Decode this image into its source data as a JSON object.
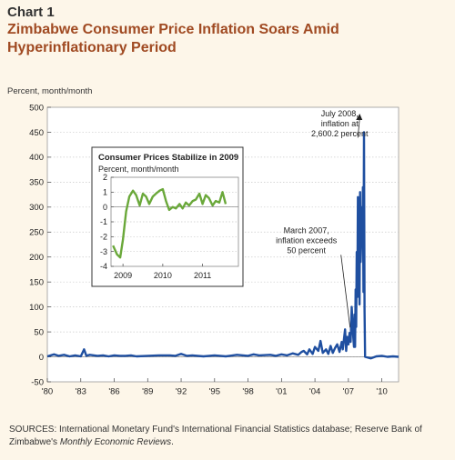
{
  "chart_number": "Chart 1",
  "title": "Zimbabwe Consumer Price Inflation Soars Amid Hyperinflationary Period",
  "units_label": "Percent, month/month",
  "sources": {
    "prefix": "SOURCES: International Monetary Fund's International Financial Statistics database; Reserve Bank of Zimbabwe's ",
    "italic": "Monthly Economic Reviews",
    "suffix": "."
  },
  "colors": {
    "series": "#1f4fa0",
    "inset_series": "#6aa83a",
    "title": "#a04a22",
    "grid": "#c9c9c9"
  },
  "chart_data": [
    {
      "type": "line",
      "title": "",
      "ylabel": "Percent, month/month",
      "ylim": [
        -50,
        500
      ],
      "y_ticks": [
        -50,
        0,
        50,
        100,
        150,
        200,
        250,
        300,
        350,
        400,
        450,
        500
      ],
      "xlim": [
        1980,
        2011.5
      ],
      "x_tick_values": [
        1980,
        1983,
        1986,
        1989,
        1992,
        1995,
        1998,
        2001,
        2004,
        2007,
        2010
      ],
      "x_tick_labels": [
        "'80",
        "'83",
        "'86",
        "'89",
        "'92",
        "'95",
        "'98",
        "'01",
        "'04",
        "'07",
        "'10"
      ],
      "grid": "horizontal dotted",
      "series": [
        {
          "x": [
            1980,
            1980.6,
            1981,
            1981.5,
            1982,
            1982.5,
            1983,
            1983.3,
            1983.5,
            1983.8,
            1984.5,
            1985,
            1985.5,
            1986,
            1986.5,
            1987,
            1987.5,
            1988,
            1989,
            1990,
            1991,
            1991.5,
            1992,
            1992.5,
            1993,
            1994,
            1995,
            1995.5,
            1996,
            1997,
            1998,
            1998.5,
            1999,
            2000,
            2000.5,
            2001,
            2001.5,
            2002,
            2002.5,
            2002.8,
            2003,
            2003.3,
            2003.5,
            2003.8,
            2004,
            2004.3,
            2004.5,
            2004.7,
            2005,
            2005.2,
            2005.4,
            2005.6,
            2005.8,
            2006,
            2006.2,
            2006.4,
            2006.5,
            2006.7,
            2006.8,
            2006.9,
            2007,
            2007.1,
            2007.2,
            2007.3,
            2007.4,
            2007.5,
            2007.55,
            2007.6,
            2007.65,
            2007.7,
            2007.75,
            2007.8,
            2007.85,
            2007.9,
            2007.95,
            2008,
            2008.05,
            2008.1,
            2008.15,
            2008.2,
            2008.25,
            2008.3,
            2008.35,
            2008.4,
            2008.45,
            2008.5,
            2009,
            2009.5,
            2010,
            2010.5,
            2011,
            2011.5
          ],
          "y": [
            1,
            5,
            2,
            4,
            1,
            3,
            1,
            15,
            2,
            4,
            2,
            3,
            1,
            3,
            2,
            2,
            3,
            1,
            2,
            3,
            3,
            2,
            6,
            2,
            3,
            1,
            3,
            2,
            1,
            4,
            2,
            5,
            3,
            4,
            2,
            5,
            3,
            7,
            4,
            10,
            12,
            5,
            15,
            6,
            20,
            12,
            32,
            8,
            15,
            6,
            22,
            8,
            18,
            25,
            10,
            30,
            15,
            55,
            12,
            40,
            25,
            48,
            30,
            100,
            50,
            20,
            85,
            20,
            135,
            60,
            210,
            120,
            320,
            160,
            250,
            105,
            330,
            190,
            230,
            300,
            225,
            340,
            130,
            450,
            95,
            0,
            -3,
            1,
            2,
            0,
            1,
            0
          ]
        }
      ],
      "annotations": [
        {
          "x": 2008.5,
          "y": 450,
          "lines": [
            "July 2008,",
            "inflation at",
            "2,600.2 percent"
          ]
        },
        {
          "x": 2007.15,
          "y": 55,
          "lines": [
            "March 2007,",
            "inflation exceeds",
            "50 percent"
          ]
        }
      ]
    },
    {
      "type": "line",
      "title": "Consumer Prices Stabilize in 2009",
      "ylabel": "Percent, month/month",
      "ylim": [
        -4,
        2
      ],
      "y_ticks": [
        -4,
        -3,
        -2,
        -1,
        0,
        1,
        2
      ],
      "xlim": [
        2008.7,
        2011.9
      ],
      "x_tick_values": [
        2009,
        2010,
        2011
      ],
      "x_tick_labels": [
        "2009",
        "2010",
        "2011"
      ],
      "series": [
        {
          "x": [
            2008.75,
            2008.85,
            2008.93,
            2009.0,
            2009.08,
            2009.16,
            2009.25,
            2009.33,
            2009.42,
            2009.5,
            2009.58,
            2009.66,
            2009.75,
            2009.83,
            2009.92,
            2010.0,
            2010.08,
            2010.16,
            2010.25,
            2010.33,
            2010.42,
            2010.5,
            2010.58,
            2010.66,
            2010.75,
            2010.83,
            2010.92,
            2011.0,
            2011.08,
            2011.16,
            2011.25,
            2011.33,
            2011.42,
            2011.5,
            2011.58
          ],
          "y": [
            -2.6,
            -3.2,
            -3.4,
            -2.2,
            -0.3,
            0.7,
            1.1,
            0.8,
            0.1,
            0.9,
            0.7,
            0.2,
            0.7,
            0.9,
            1.1,
            1.2,
            0.4,
            -0.2,
            0.0,
            -0.1,
            0.2,
            -0.1,
            0.3,
            0.1,
            0.4,
            0.5,
            0.9,
            0.2,
            0.8,
            0.6,
            0.1,
            0.4,
            0.3,
            1.0,
            0.2
          ]
        }
      ]
    }
  ]
}
